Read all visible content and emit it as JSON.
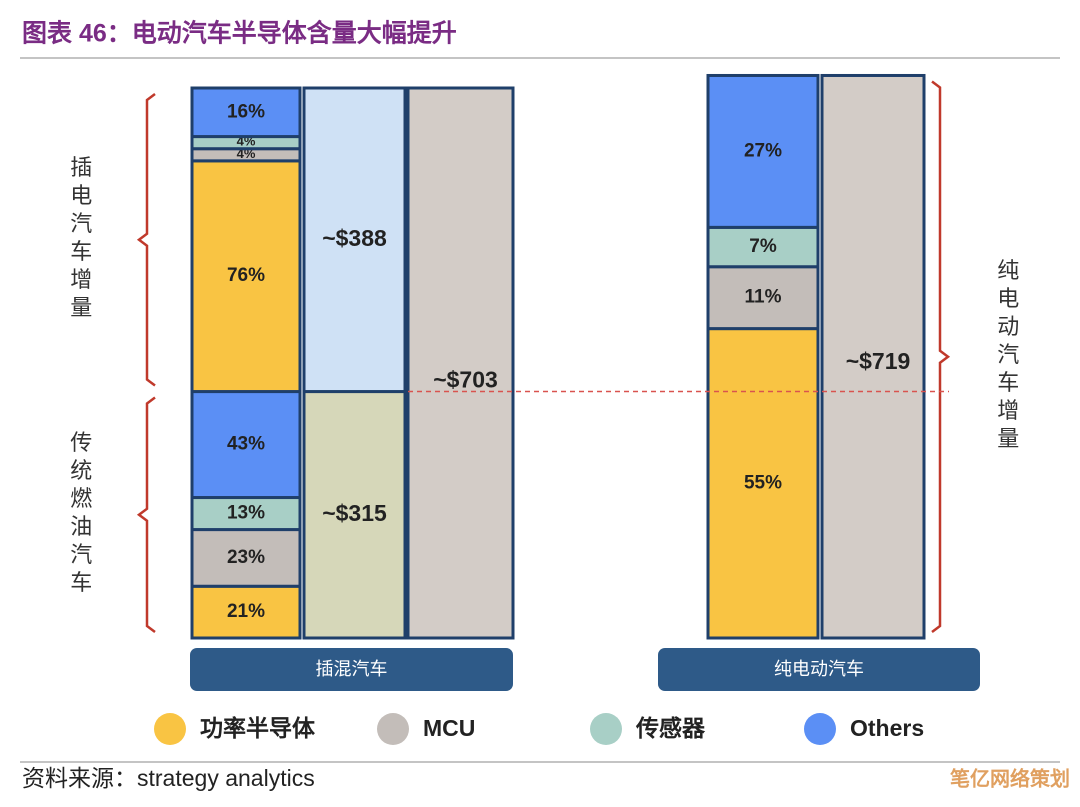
{
  "chart_data": {
    "type": "stacked-composition",
    "title": "图表 46：电动汽车半导体含量大幅提升",
    "source": "资料来源：strategy analytics",
    "watermark": "笔亿网络策划",
    "series": [
      {
        "name": "功率半导体",
        "color": "#f9c443"
      },
      {
        "name": "MCU",
        "color": "#c3bdb9"
      },
      {
        "name": "传感器",
        "color": "#a8cfc6"
      },
      {
        "name": "Others",
        "color": "#5b8ff5"
      }
    ],
    "groups": [
      {
        "category": "插混汽车",
        "total": 703,
        "total_label": "~$703",
        "total_color": "#d3ccc7",
        "blocks": [
          {
            "label": "传统燃油汽车",
            "value": 315,
            "value_label": "~$315",
            "color": "#d6d7b9",
            "shares": [
              21,
              23,
              13,
              43
            ]
          },
          {
            "label": "插电汽车增量",
            "value": 388,
            "value_label": "~$388",
            "color": "#cfe1f5",
            "shares": [
              76,
              4,
              4,
              16
            ]
          }
        ]
      },
      {
        "category": "纯电动汽车",
        "total": 719,
        "total_label": "~$719",
        "total_color": "#d3ccc7",
        "blocks": [
          {
            "label": "纯电动汽车增量",
            "shares": [
              55,
              11,
              7,
              27
            ]
          }
        ]
      }
    ]
  }
}
